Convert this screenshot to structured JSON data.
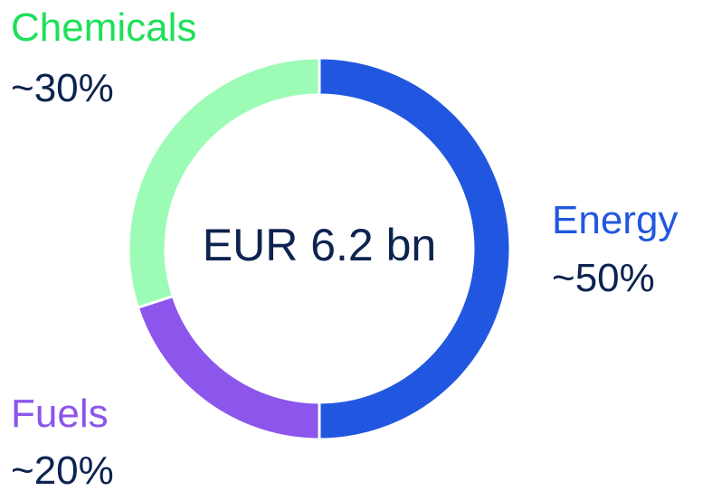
{
  "chart_data": {
    "type": "pie",
    "donut": true,
    "center_label": "EUR 6.2 bn",
    "categories": [
      "Energy",
      "Fuels",
      "Chemicals"
    ],
    "values": [
      50,
      20,
      30
    ],
    "value_labels": [
      "~50%",
      "~20%",
      "~30%"
    ],
    "colors": [
      "#2157e0",
      "#8c55ec",
      "#9cfbb5"
    ],
    "label_colors": [
      "#2157e0",
      "#8c55ec",
      "#1ee05a"
    ]
  }
}
